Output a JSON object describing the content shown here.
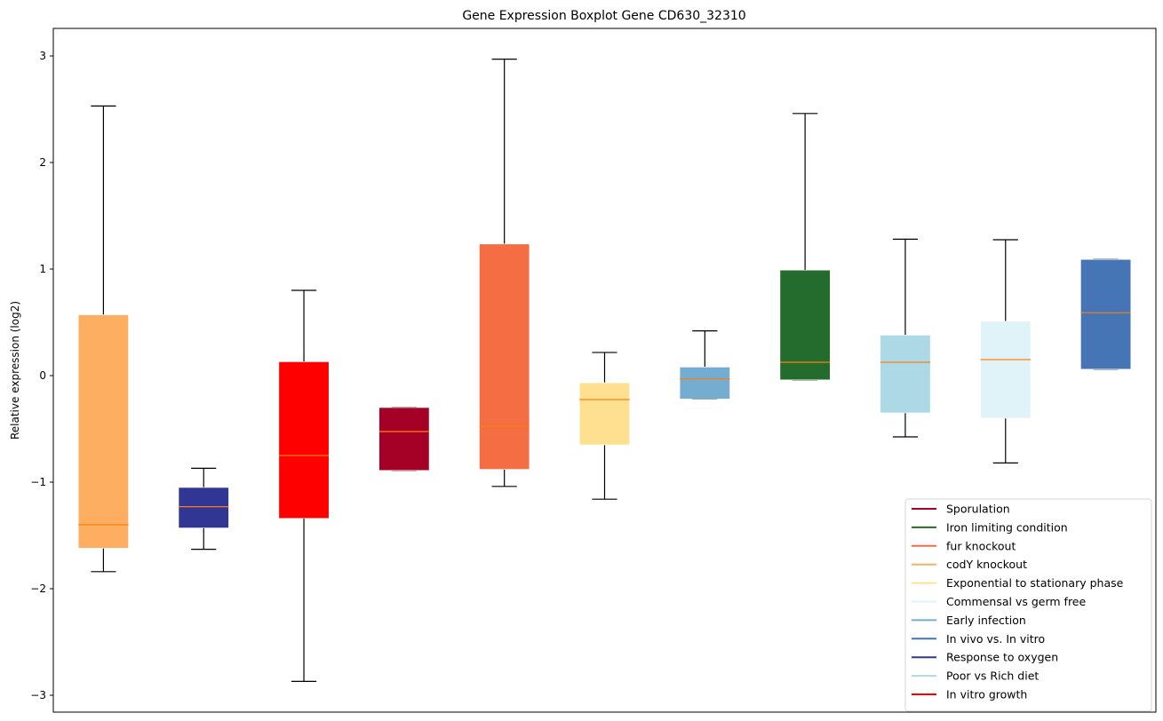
{
  "chart_data": {
    "type": "boxplot",
    "title": "Gene Expression Boxplot Gene CD630_32310",
    "xlabel": "",
    "ylabel": "Relative expression (log2)",
    "ylim": [
      -3.15,
      3.25
    ],
    "yticks": [
      -3,
      -2,
      -1,
      0,
      1,
      2,
      3
    ],
    "ytick_labels": [
      "−3",
      "−2",
      "−1",
      "0",
      "1",
      "2",
      "3"
    ],
    "grid": false,
    "legend_position": "lower-right",
    "median_color": "#ff7f0e",
    "boxes": [
      {
        "name": "codY knockout",
        "color": "#fdae61",
        "whisker_low": -1.84,
        "q1": -1.62,
        "median": -1.4,
        "q3": 0.57,
        "whisker_high": 2.53
      },
      {
        "name": "Response to oxygen",
        "color": "#313695",
        "whisker_low": -1.63,
        "q1": -1.43,
        "median": -1.23,
        "q3": -1.05,
        "whisker_high": -0.87
      },
      {
        "name": "In vitro growth",
        "color": "#ff0000",
        "whisker_low": -2.87,
        "q1": -1.34,
        "median": -0.75,
        "q3": 0.13,
        "whisker_high": 0.8
      },
      {
        "name": "Sporulation",
        "color": "#a50026",
        "whisker_low": -0.89,
        "q1": -0.89,
        "median": -0.525,
        "q3": -0.3,
        "whisker_high": -0.3
      },
      {
        "name": "fur knockout",
        "color": "#f46d43",
        "whisker_low": -1.04,
        "q1": -0.88,
        "median": -0.475,
        "q3": 1.235,
        "whisker_high": 2.97
      },
      {
        "name": "Exponential to stationary phase",
        "color": "#fee090",
        "whisker_low": -1.16,
        "q1": -0.65,
        "median": -0.225,
        "q3": -0.067,
        "whisker_high": 0.217
      },
      {
        "name": "Early infection",
        "color": "#74add1",
        "whisker_low": -0.22,
        "q1": -0.22,
        "median": -0.03,
        "q3": 0.08,
        "whisker_high": 0.42
      },
      {
        "name": "Iron limiting condition",
        "color": "#246b2e",
        "whisker_low": -0.04,
        "q1": -0.04,
        "median": 0.125,
        "q3": 0.99,
        "whisker_high": 2.46
      },
      {
        "name": "Poor vs Rich diet",
        "color": "#add8e6",
        "whisker_low": -0.575,
        "q1": -0.35,
        "median": 0.125,
        "q3": 0.38,
        "whisker_high": 1.28
      },
      {
        "name": "Commensal vs germ free",
        "color": "#e0f3f8",
        "whisker_low": -0.82,
        "q1": -0.4,
        "median": 0.15,
        "q3": 0.51,
        "whisker_high": 1.275
      },
      {
        "name": "In vivo vs. In vitro",
        "color": "#4575b4",
        "whisker_low": 0.06,
        "q1": 0.06,
        "median": 0.59,
        "q3": 1.09,
        "whisker_high": 1.09
      }
    ],
    "legend": [
      {
        "label": "Sporulation",
        "color": "#a50026"
      },
      {
        "label": "Iron limiting condition",
        "color": "#246b2e"
      },
      {
        "label": "fur knockout",
        "color": "#f46d43"
      },
      {
        "label": "codY knockout",
        "color": "#fdae61"
      },
      {
        "label": "Exponential to stationary phase",
        "color": "#fee090"
      },
      {
        "label": "Commensal vs germ free",
        "color": "#e0f3f8"
      },
      {
        "label": "Early infection",
        "color": "#74add1"
      },
      {
        "label": "In vivo vs. In vitro",
        "color": "#4575b4"
      },
      {
        "label": "Response to oxygen",
        "color": "#313695"
      },
      {
        "label": "Poor vs Rich diet",
        "color": "#add8e6"
      },
      {
        "label": "In vitro growth",
        "color": "#ff0000"
      }
    ]
  }
}
